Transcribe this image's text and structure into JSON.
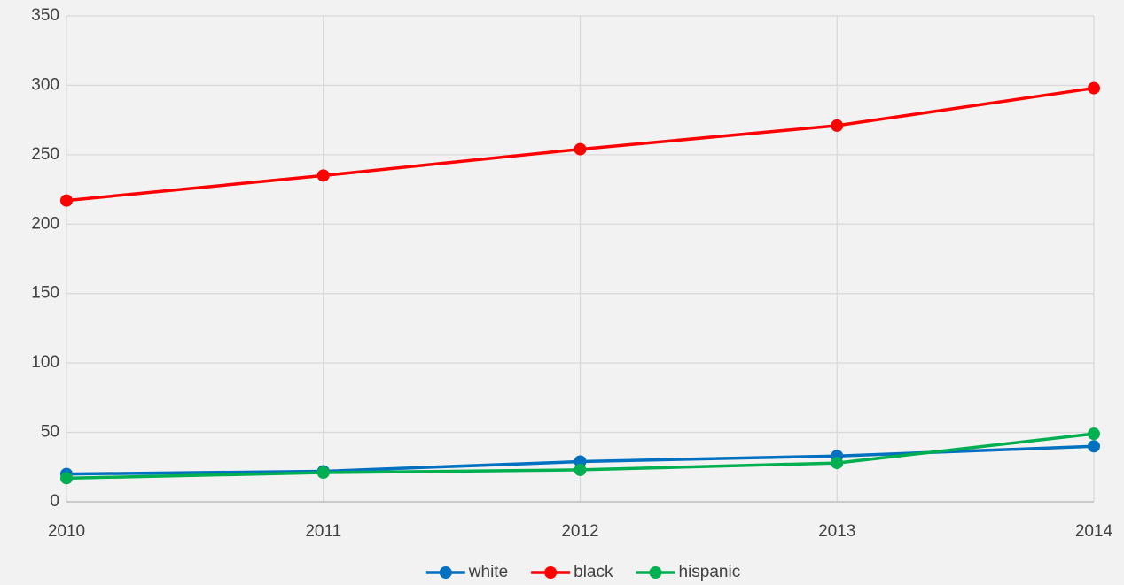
{
  "chart_data": {
    "type": "line",
    "x": [
      2010,
      2011,
      2012,
      2013,
      2014
    ],
    "xlim": [
      2010,
      2014
    ],
    "xticks": [
      2010,
      2011,
      2012,
      2013,
      2014
    ],
    "ylim": [
      0,
      350
    ],
    "yticks": [
      0,
      50,
      100,
      150,
      200,
      250,
      300,
      350
    ],
    "grid": true,
    "legend": "bottom",
    "series": [
      {
        "name": "white",
        "color": "#0070c0",
        "values": [
          20,
          22,
          29,
          33,
          40
        ]
      },
      {
        "name": "black",
        "color": "#ff0000",
        "values": [
          217,
          235,
          254,
          271,
          298
        ]
      },
      {
        "name": "hispanic",
        "color": "#00b050",
        "values": [
          17,
          21,
          23,
          28,
          49
        ]
      }
    ]
  }
}
